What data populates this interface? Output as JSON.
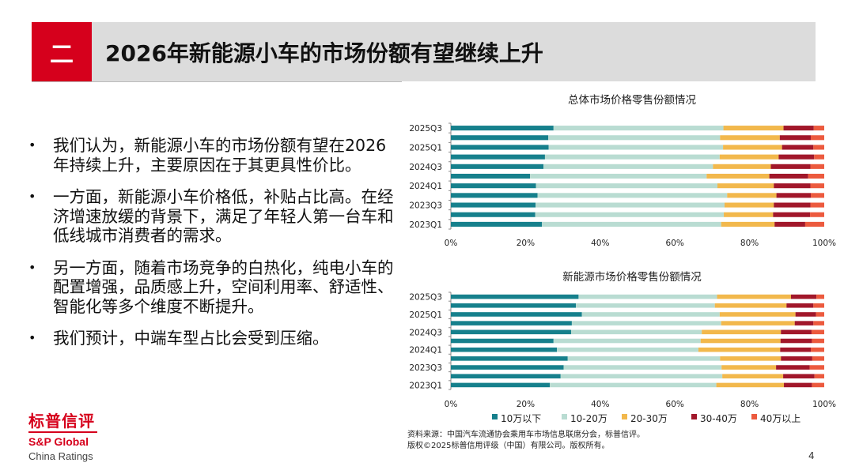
{
  "header": {
    "section_number": "二",
    "title": "2026年新能源小车的市场份额有望继续上升"
  },
  "bullets": [
    "我们认为，新能源小车的市场份额有望在2026年持续上升，主要原因在于其更具性价比。",
    "一方面，新能源小车价格低，补贴占比高。在经济增速放缓的背景下，满足了年轻人第一台车和低线城市消费者的需求。",
    "另一方面，随着市场竞争的白热化，纯电小车的配置增强，品质感上升，空间利用率、舒适性、智能化等多个维度不断提升。",
    "我们预计，中端车型占比会受到压缩。"
  ],
  "bullet_symbol": "•",
  "colors": {
    "brand_red": "#d6001c",
    "header_bg": "#dcdcdc",
    "series": [
      "#16808c",
      "#b9dcd2",
      "#f2b84c",
      "#a1172a",
      "#ec5a3e"
    ]
  },
  "chart_data": [
    {
      "type": "bar",
      "orientation": "horizontal",
      "stacked": true,
      "title": "总体市场价格零售份额情况",
      "categories": [
        "2023Q1",
        "2023Q2",
        "2023Q3",
        "2023Q4",
        "2024Q1",
        "2024Q2",
        "2024Q3",
        "2024Q4",
        "2025Q1",
        "2025Q2",
        "2025Q3"
      ],
      "y_tick_labels": [
        "2023Q1",
        "2023Q3",
        "2024Q1",
        "2024Q3",
        "2025Q1",
        "2025Q3"
      ],
      "x_tick_labels": [
        "0%",
        "20%",
        "40%",
        "60%",
        "80%",
        "100%"
      ],
      "xlim": [
        0,
        100
      ],
      "series": [
        {
          "name": "10万以下",
          "values": [
            24.4,
            22.6,
            22.7,
            23.2,
            22.8,
            21.2,
            24.8,
            25.2,
            26.2,
            26.1,
            27.5
          ]
        },
        {
          "name": "10-20万",
          "values": [
            48.0,
            50.5,
            50.6,
            50.8,
            48.6,
            47.3,
            45.4,
            46.8,
            46.7,
            46.0,
            45.5
          ]
        },
        {
          "name": "20-30万",
          "values": [
            14.3,
            13.2,
            13.2,
            13.2,
            15.1,
            16.8,
            15.5,
            15.8,
            15.8,
            16.0,
            16.1
          ]
        },
        {
          "name": "30-40万",
          "values": [
            8.2,
            9.9,
            9.8,
            9.2,
            9.8,
            10.4,
            10.6,
            9.5,
            8.4,
            8.3,
            8.1
          ]
        },
        {
          "name": "40万以上",
          "values": [
            5.1,
            3.8,
            3.7,
            3.6,
            3.7,
            4.3,
            3.7,
            2.7,
            2.9,
            3.6,
            2.8
          ]
        }
      ]
    },
    {
      "type": "bar",
      "orientation": "horizontal",
      "stacked": true,
      "title": "新能源市场价格零售份额情况",
      "categories": [
        "2023Q1",
        "2023Q2",
        "2023Q3",
        "2023Q4",
        "2024Q1",
        "2024Q2",
        "2024Q3",
        "2024Q4",
        "2025Q1",
        "2025Q2",
        "2025Q3"
      ],
      "y_tick_labels": [
        "2023Q1",
        "2023Q3",
        "2024Q1",
        "2024Q3",
        "2025Q1",
        "2025Q3"
      ],
      "x_tick_labels": [
        "0%",
        "20%",
        "40%",
        "60%",
        "80%",
        "100%"
      ],
      "xlim": [
        0,
        100
      ],
      "legend": "bottom",
      "series": [
        {
          "name": "10万以下",
          "values": [
            26.5,
            29.4,
            30.2,
            31.3,
            28.4,
            27.5,
            32.2,
            32.4,
            35.1,
            33.5,
            34.2
          ]
        },
        {
          "name": "10-20万",
          "values": [
            44.6,
            43.3,
            42.3,
            40.8,
            37.9,
            39.4,
            35.0,
            40.0,
            36.9,
            37.2,
            37.1
          ]
        },
        {
          "name": "20-30万",
          "values": [
            18.1,
            16.3,
            14.6,
            16.3,
            21.9,
            21.4,
            21.2,
            19.7,
            20.3,
            19.2,
            19.8
          ]
        },
        {
          "name": "30-40万",
          "values": [
            7.5,
            8.4,
            9.0,
            8.4,
            8.2,
            8.4,
            8.2,
            5.0,
            5.5,
            7.2,
            6.8
          ]
        },
        {
          "name": "40万以上",
          "values": [
            3.3,
            2.6,
            3.9,
            3.2,
            3.6,
            3.3,
            3.4,
            2.9,
            2.2,
            2.9,
            2.1
          ]
        }
      ]
    }
  ],
  "source": {
    "line1": "资料来源：中国汽车流通协会乘用车市场信息联席分会，标普信评。",
    "line2": "版权©2025标普信用评级（中国）有限公司。版权所有。"
  },
  "logo": {
    "cn": "标普信评",
    "en": "S&P Global",
    "sub": "China Ratings"
  },
  "page_number": "4"
}
